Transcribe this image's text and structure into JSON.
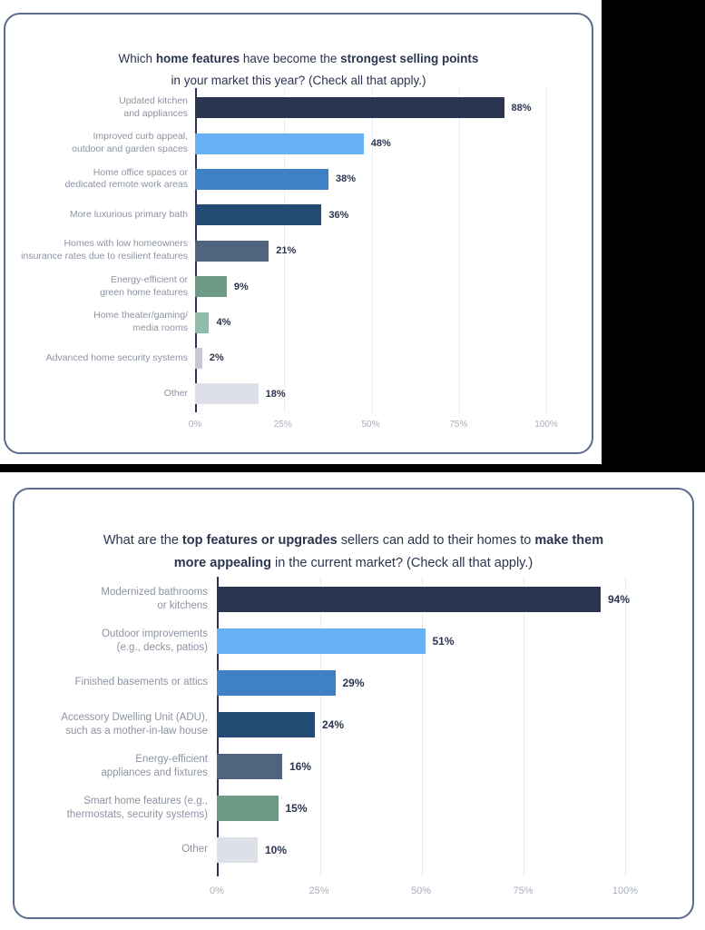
{
  "page": {
    "background_color": "#FFFFFF",
    "redaction_color": "#000000",
    "card_border_color": "#5B6B8C",
    "title_color": "#2B3550",
    "category_label_color": "#8C93A2",
    "value_label_color": "#2B3550",
    "tick_label_color": "#A8AEBA",
    "gridline_color": "#E9EBF0",
    "axis_line_color": "#2B3550"
  },
  "chart_data": [
    {
      "type": "bar",
      "orientation": "horizontal",
      "title": "Which home features have become the strongest selling points in your market this year? (Check all that apply.)",
      "title_segments": [
        {
          "text": "Which ",
          "bold": false
        },
        {
          "text": "home features",
          "bold": true
        },
        {
          "text": " have become the ",
          "bold": false
        },
        {
          "text": "strongest selling points",
          "bold": true
        },
        {
          "text": "\nin your market this year? (Check all that apply.)",
          "bold": false
        }
      ],
      "categories": [
        "Updated kitchen\nand appliances",
        "Improved curb appeal,\noutdoor and garden spaces",
        "Home office spaces or\ndedicated remote work areas",
        "More luxurious primary bath",
        "Homes with low homeowners\ninsurance rates due to resilient features",
        "Energy-efficient or\ngreen home features",
        "Home theater/gaming/\nmedia rooms",
        "Advanced home security systems",
        "Other"
      ],
      "values": [
        88,
        48,
        38,
        36,
        21,
        9,
        4,
        2,
        18
      ],
      "value_labels": [
        "88%",
        "48%",
        "38%",
        "36%",
        "21%",
        "9%",
        "4%",
        "2%",
        "18%"
      ],
      "bar_colors": [
        "#2A3550",
        "#66B2F5",
        "#3E81C4",
        "#234A72",
        "#50647F",
        "#6E9B86",
        "#8FBCA6",
        "#C6C9D3",
        "#DDE0E9"
      ],
      "x_ticks": [
        "0%",
        "25%",
        "50%",
        "75%",
        "100%"
      ],
      "xlim": [
        0,
        100
      ],
      "grid": true,
      "legend": false
    },
    {
      "type": "bar",
      "orientation": "horizontal",
      "title": "What are the top features or upgrades sellers can add to their homes to make them more appealing in the current market? (Check all that apply.)",
      "title_segments": [
        {
          "text": "What are the ",
          "bold": false
        },
        {
          "text": "top features or upgrades",
          "bold": true
        },
        {
          "text": " sellers can add to their homes to ",
          "bold": false
        },
        {
          "text": "make them\nmore appealing",
          "bold": true
        },
        {
          "text": " in the current market? (Check all that apply.)",
          "bold": false
        }
      ],
      "categories": [
        "Modernized bathrooms\nor kitchens",
        "Outdoor improvements\n(e.g., decks, patios)",
        "Finished basements or attics",
        "Accessory Dwelling Unit (ADU),\nsuch as a mother-in-law house",
        "Energy-efficient\nappliances and fixtures",
        "Smart home features (e.g.,\nthermostats, security systems)",
        "Other"
      ],
      "values": [
        94,
        51,
        29,
        24,
        16,
        15,
        10
      ],
      "value_labels": [
        "94%",
        "51%",
        "29%",
        "24%",
        "16%",
        "15%",
        "10%"
      ],
      "bar_colors": [
        "#2A3550",
        "#66B2F5",
        "#3E81C4",
        "#234A72",
        "#50647F",
        "#6E9B86",
        "#DDE0E9"
      ],
      "x_ticks": [
        "0%",
        "25%",
        "50%",
        "75%",
        "100%"
      ],
      "xlim": [
        0,
        100
      ],
      "grid": true,
      "legend": false
    }
  ]
}
